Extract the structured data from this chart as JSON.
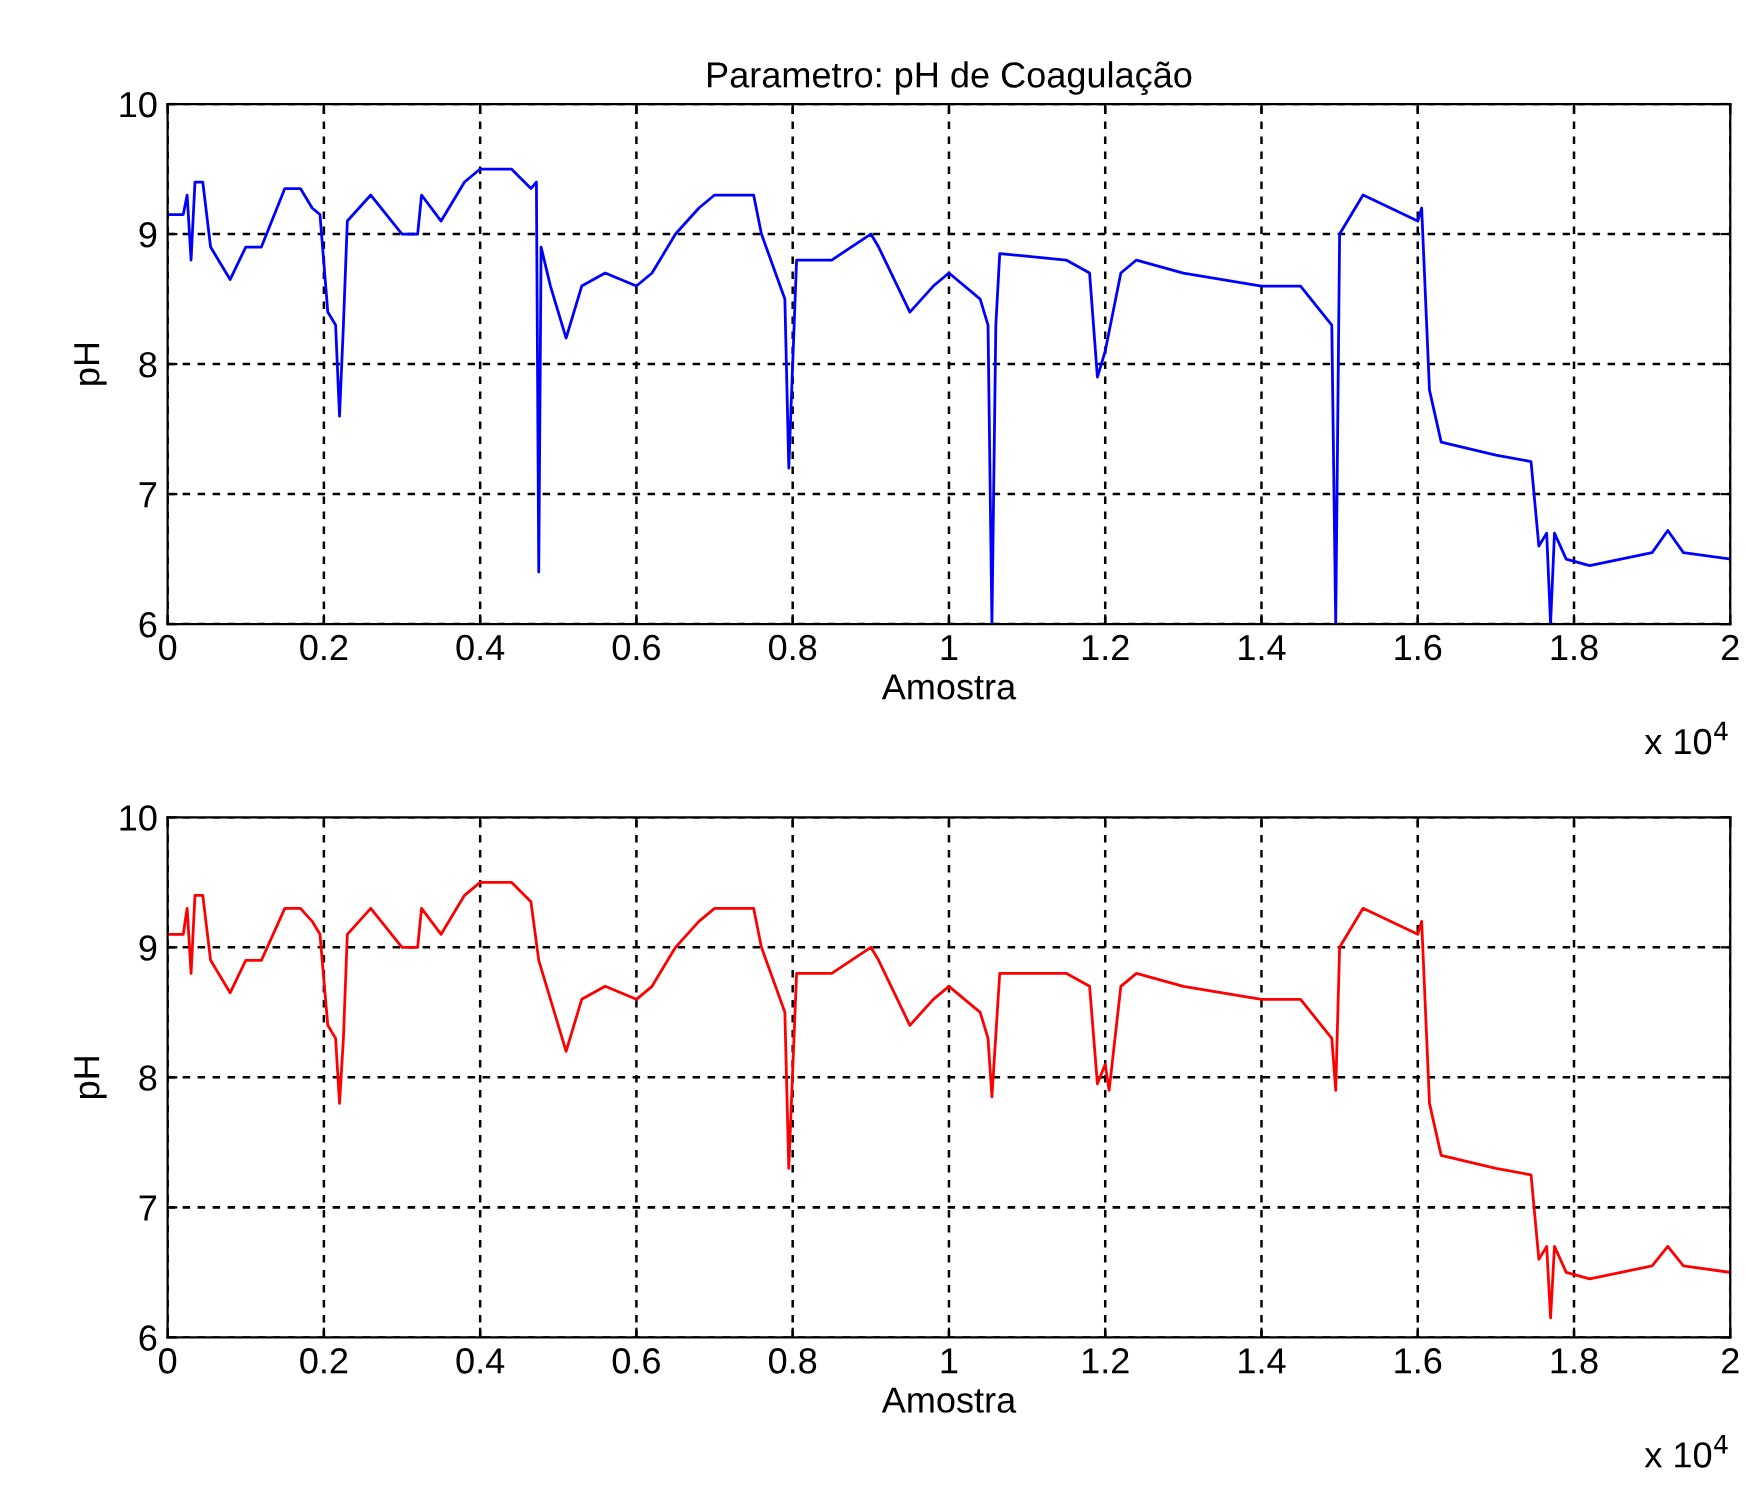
{
  "chart_data": [
    {
      "type": "line",
      "title": "Parametro: pH de Coagulação",
      "xlabel": "Amostra",
      "ylabel": "pH",
      "annotations": [
        "x 10$^{4}$"
      ],
      "grid": true,
      "marker": "none",
      "line_style": "solid",
      "xlim": [
        0,
        2
      ],
      "ylim": [
        6,
        10
      ],
      "yticks": [
        6,
        7,
        8,
        9,
        10
      ],
      "xticks": [
        0,
        0.2,
        0.4,
        0.6,
        0.8,
        1,
        1.2,
        1.4,
        1.6,
        1.8,
        2
      ],
      "series": [
        {
          "color": "#0000ff",
          "x": [
            0,
            0.02,
            0.025,
            0.03,
            0.035,
            0.045,
            0.055,
            0.08,
            0.1,
            0.12,
            0.15,
            0.17,
            0.185,
            0.195,
            0.205,
            0.215,
            0.22,
            0.225,
            0.23,
            0.26,
            0.3,
            0.32,
            0.325,
            0.35,
            0.37,
            0.38,
            0.4,
            0.44,
            0.465,
            0.472,
            0.475,
            0.478,
            0.49,
            0.51,
            0.53,
            0.56,
            0.6,
            0.62,
            0.65,
            0.68,
            0.7,
            0.75,
            0.76,
            0.79,
            0.795,
            0.805,
            0.85,
            0.9,
            0.91,
            0.95,
            0.98,
            1.0,
            1.04,
            1.05,
            1.055,
            1.06,
            1.065,
            1.15,
            1.18,
            1.19,
            1.2,
            1.22,
            1.24,
            1.3,
            1.4,
            1.45,
            1.49,
            1.495,
            1.5,
            1.53,
            1.6,
            1.605,
            1.615,
            1.63,
            1.7,
            1.745,
            1.755,
            1.765,
            1.77,
            1.775,
            1.79,
            1.82,
            1.9,
            1.92,
            1.94,
            2.0
          ],
          "values": [
            9.15,
            9.15,
            9.3,
            8.8,
            9.4,
            9.4,
            8.9,
            8.65,
            8.9,
            8.9,
            9.35,
            9.35,
            9.2,
            9.15,
            8.4,
            8.3,
            7.6,
            8.3,
            9.1,
            9.3,
            9.0,
            9.0,
            9.3,
            9.1,
            9.3,
            9.4,
            9.5,
            9.5,
            9.35,
            9.4,
            6.4,
            8.9,
            8.6,
            8.2,
            8.6,
            8.7,
            8.6,
            8.7,
            9.0,
            9.2,
            9.3,
            9.3,
            9.0,
            8.5,
            7.2,
            8.8,
            8.8,
            9.0,
            8.9,
            8.4,
            8.6,
            8.7,
            8.5,
            8.3,
            6.0,
            8.3,
            8.85,
            8.8,
            8.7,
            7.9,
            8.1,
            8.7,
            8.8,
            8.7,
            8.6,
            8.6,
            8.3,
            6.0,
            9.0,
            9.3,
            9.1,
            9.2,
            7.8,
            7.4,
            7.3,
            7.25,
            6.6,
            6.7,
            6.0,
            6.7,
            6.5,
            6.45,
            6.55,
            6.72,
            6.55,
            6.5
          ]
        }
      ]
    },
    {
      "type": "line",
      "xlabel": "Amostra",
      "ylabel": "pH",
      "annotations": [
        "x 10$^{4}$"
      ],
      "grid": true,
      "marker": "none",
      "line_style": "solid",
      "xlim": [
        0,
        2
      ],
      "ylim": [
        6,
        10
      ],
      "yticks": [
        6,
        7,
        8,
        9,
        10
      ],
      "xticks": [
        0,
        0.2,
        0.4,
        0.6,
        0.8,
        1,
        1.2,
        1.4,
        1.6,
        1.8,
        2
      ],
      "series": [
        {
          "color": "#ff0000",
          "x": [
            0,
            0.02,
            0.025,
            0.03,
            0.035,
            0.045,
            0.055,
            0.08,
            0.1,
            0.12,
            0.15,
            0.17,
            0.185,
            0.195,
            0.205,
            0.215,
            0.22,
            0.225,
            0.23,
            0.26,
            0.3,
            0.32,
            0.325,
            0.35,
            0.37,
            0.38,
            0.4,
            0.44,
            0.465,
            0.475,
            0.49,
            0.51,
            0.53,
            0.56,
            0.6,
            0.62,
            0.65,
            0.68,
            0.7,
            0.75,
            0.76,
            0.79,
            0.795,
            0.805,
            0.85,
            0.9,
            0.91,
            0.95,
            0.98,
            1.0,
            1.04,
            1.05,
            1.055,
            1.065,
            1.15,
            1.18,
            1.19,
            1.2,
            1.205,
            1.22,
            1.24,
            1.3,
            1.4,
            1.45,
            1.49,
            1.495,
            1.5,
            1.53,
            1.6,
            1.605,
            1.615,
            1.63,
            1.7,
            1.745,
            1.755,
            1.765,
            1.77,
            1.775,
            1.79,
            1.82,
            1.9,
            1.92,
            1.94,
            2.0
          ],
          "values": [
            9.1,
            9.1,
            9.3,
            8.8,
            9.4,
            9.4,
            8.9,
            8.65,
            8.9,
            8.9,
            9.3,
            9.3,
            9.2,
            9.1,
            8.4,
            8.3,
            7.8,
            8.3,
            9.1,
            9.3,
            9.0,
            9.0,
            9.3,
            9.1,
            9.3,
            9.4,
            9.5,
            9.5,
            9.35,
            8.9,
            8.6,
            8.2,
            8.6,
            8.7,
            8.6,
            8.7,
            9.0,
            9.2,
            9.3,
            9.3,
            9.0,
            8.5,
            7.3,
            8.8,
            8.8,
            9.0,
            8.9,
            8.4,
            8.6,
            8.7,
            8.5,
            8.3,
            7.85,
            8.8,
            8.8,
            8.7,
            7.95,
            8.1,
            7.9,
            8.7,
            8.8,
            8.7,
            8.6,
            8.6,
            8.3,
            7.9,
            9.0,
            9.3,
            9.1,
            9.2,
            7.8,
            7.4,
            7.3,
            7.25,
            6.6,
            6.7,
            6.15,
            6.7,
            6.5,
            6.45,
            6.55,
            6.7,
            6.55,
            6.5
          ]
        }
      ]
    }
  ]
}
